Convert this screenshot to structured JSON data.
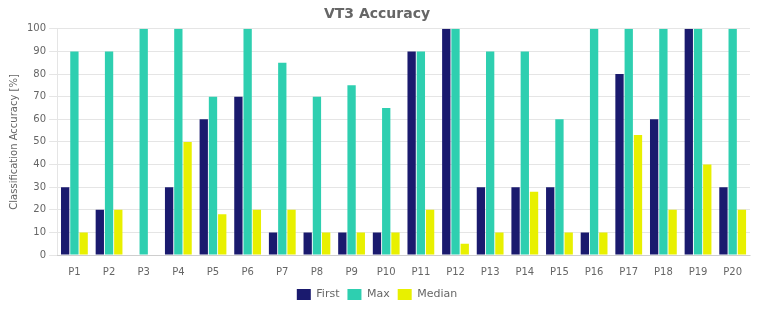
{
  "chart_data": {
    "type": "bar",
    "title": "VT3 Accuracy",
    "ylabel": "Classification Accuracy [%]",
    "categories": [
      "P1",
      "P2",
      "P3",
      "P4",
      "P5",
      "P6",
      "P7",
      "P8",
      "P9",
      "P10",
      "P11",
      "P12",
      "P13",
      "P14",
      "P15",
      "P16",
      "P17",
      "P18",
      "P19",
      "P20"
    ],
    "series": [
      {
        "name": "First",
        "color": "#1a1a6e",
        "values": [
          30,
          20,
          0,
          30,
          60,
          70,
          10,
          10,
          10,
          10,
          90,
          100,
          30,
          30,
          30,
          10,
          80,
          60,
          100,
          30
        ]
      },
      {
        "name": "Max",
        "color": "#2ecfb0",
        "values": [
          90,
          90,
          100,
          100,
          70,
          100,
          85,
          70,
          75,
          65,
          90,
          100,
          90,
          90,
          60,
          100,
          100,
          100,
          100,
          100
        ]
      },
      {
        "name": "Median",
        "color": "#e8f000",
        "values": [
          10,
          20,
          0,
          50,
          18,
          20,
          20,
          10,
          10,
          10,
          20,
          5,
          10,
          28,
          10,
          10,
          53,
          20,
          40,
          20
        ]
      }
    ],
    "ylim": [
      0,
      100
    ],
    "yticks": [
      0,
      10,
      20,
      30,
      40,
      50,
      60,
      70,
      80,
      90,
      100
    ],
    "grid": true,
    "legend": "bottom"
  }
}
